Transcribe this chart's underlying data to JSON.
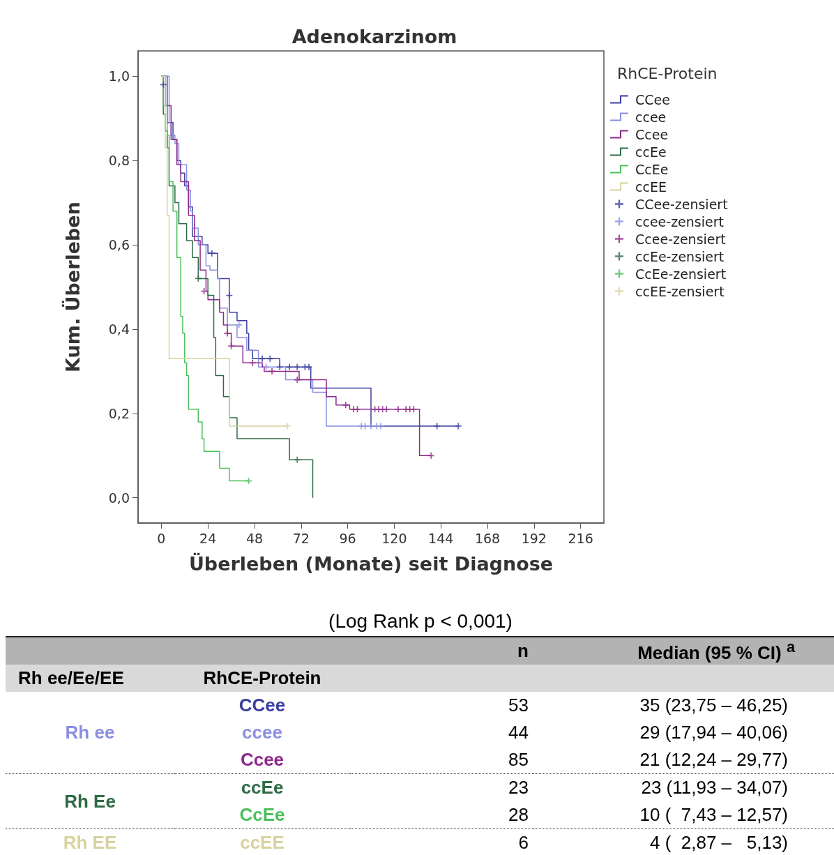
{
  "chart_data": {
    "type": "step",
    "title": "Adenokarzinom",
    "xlabel": "Überleben (Monate) seit Diagnose",
    "ylabel": "Kum. Überleben",
    "legend_title": "RhCE-Protein",
    "legend": "right",
    "grid": false,
    "xlim": [
      -12,
      228
    ],
    "xticks": [
      0,
      24,
      48,
      72,
      96,
      120,
      144,
      168,
      192,
      216
    ],
    "ylim": [
      -0.06,
      1.06
    ],
    "yticks": [
      {
        "value": 0,
        "label": "0,0"
      },
      {
        "value": 0.2,
        "label": "0,2"
      },
      {
        "value": 0.4,
        "label": "0,4"
      },
      {
        "value": 0.6,
        "label": "0,6"
      },
      {
        "value": 0.8,
        "label": "0,8"
      },
      {
        "value": 1,
        "label": "1,0"
      }
    ],
    "series": [
      {
        "name": "CCee",
        "marker": "none",
        "color": "#3b3f9e",
        "x": [
          0,
          3,
          6,
          8,
          10,
          12,
          14,
          16,
          21,
          24,
          29,
          35,
          39,
          44,
          45,
          47,
          61,
          77,
          108,
          153
        ],
        "values": [
          1,
          0.89,
          0.85,
          0.8,
          0.77,
          0.74,
          0.69,
          0.62,
          0.6,
          0.58,
          0.52,
          0.44,
          0.42,
          0.39,
          0.35,
          0.33,
          0.31,
          0.26,
          0.17,
          0.17
        ]
      },
      {
        "name": "ccee",
        "marker": "none",
        "color": "#8a8fe0",
        "x": [
          0,
          4,
          5,
          7,
          9,
          13,
          15,
          16,
          19,
          23,
          25,
          29,
          30,
          34,
          39,
          44,
          50,
          64,
          78,
          85,
          113
        ],
        "values": [
          1,
          0.89,
          0.86,
          0.84,
          0.79,
          0.73,
          0.68,
          0.64,
          0.6,
          0.55,
          0.54,
          0.52,
          0.45,
          0.41,
          0.38,
          0.35,
          0.31,
          0.28,
          0.25,
          0.17,
          0.17
        ]
      },
      {
        "name": "Ccee",
        "marker": "none",
        "color": "#8e2a8a",
        "x": [
          0,
          2,
          5,
          8,
          10,
          14,
          17,
          20,
          23,
          24,
          30,
          32,
          34,
          36,
          42,
          52,
          53,
          71,
          85,
          90,
          97,
          133,
          139
        ],
        "values": [
          1,
          0.93,
          0.85,
          0.79,
          0.75,
          0.67,
          0.61,
          0.54,
          0.49,
          0.47,
          0.44,
          0.41,
          0.39,
          0.36,
          0.32,
          0.31,
          0.3,
          0.28,
          0.24,
          0.22,
          0.21,
          0.1,
          0.1
        ]
      },
      {
        "name": "ccEe",
        "marker": "none",
        "color": "#2e6b46",
        "x": [
          0,
          1,
          2,
          3,
          4,
          7,
          9,
          13,
          16,
          19,
          24,
          27,
          28,
          32,
          35,
          39,
          66,
          78
        ],
        "values": [
          1,
          0.91,
          0.87,
          0.83,
          0.74,
          0.7,
          0.65,
          0.61,
          0.57,
          0.52,
          0.48,
          0.38,
          0.29,
          0.24,
          0.19,
          0.14,
          0.09,
          0
        ]
      },
      {
        "name": "CcEe",
        "marker": "none",
        "color": "#4cbf5a",
        "x": [
          0,
          1,
          3,
          4,
          6,
          8,
          10,
          11,
          12,
          13,
          14,
          19,
          21,
          22,
          30,
          35,
          45
        ],
        "values": [
          1,
          0.93,
          0.86,
          0.75,
          0.68,
          0.57,
          0.43,
          0.39,
          0.32,
          0.29,
          0.21,
          0.18,
          0.14,
          0.11,
          0.07,
          0.04,
          0.04
        ]
      },
      {
        "name": "ccEE",
        "marker": "none",
        "color": "#d8d2a0",
        "x": [
          0,
          2,
          3,
          4,
          35,
          65
        ],
        "values": [
          1,
          0.83,
          0.67,
          0.33,
          0.17,
          0.17
        ]
      },
      {
        "name": "CCee-zensiert",
        "type": "scatter",
        "marker": "cross",
        "color": "#3b3f9e",
        "x": [
          1,
          26,
          35,
          52,
          56,
          61,
          66,
          70,
          74,
          76,
          142,
          153
        ],
        "values": [
          0.98,
          0.58,
          0.48,
          0.33,
          0.33,
          0.31,
          0.31,
          0.31,
          0.31,
          0.31,
          0.17,
          0.17
        ]
      },
      {
        "name": "ccee-zensiert",
        "type": "scatter",
        "marker": "cross",
        "color": "#8a8fe0",
        "x": [
          40,
          54,
          103,
          105,
          108,
          111,
          113
        ],
        "values": [
          0.41,
          0.31,
          0.17,
          0.17,
          0.17,
          0.17,
          0.17
        ]
      },
      {
        "name": "Ccee-zensiert",
        "type": "scatter",
        "marker": "cross",
        "color": "#8e2a8a",
        "x": [
          22,
          34,
          36,
          47,
          57,
          70,
          95,
          99,
          101,
          110,
          112,
          114,
          116,
          122,
          126,
          128,
          130,
          139
        ],
        "values": [
          0.49,
          0.39,
          0.36,
          0.32,
          0.3,
          0.28,
          0.22,
          0.21,
          0.21,
          0.21,
          0.21,
          0.21,
          0.21,
          0.21,
          0.21,
          0.21,
          0.21,
          0.1
        ]
      },
      {
        "name": "ccEe-zensiert",
        "type": "scatter",
        "marker": "cross",
        "color": "#2e6b46",
        "x": [
          19,
          70
        ],
        "values": [
          0.52,
          0.09
        ]
      },
      {
        "name": "CcEe-zensiert",
        "type": "scatter",
        "marker": "cross",
        "color": "#4cbf5a",
        "x": [
          45
        ],
        "values": [
          0.04
        ]
      },
      {
        "name": "ccEE-zensiert",
        "type": "scatter",
        "marker": "cross",
        "color": "#d8d2a0",
        "x": [
          65
        ],
        "values": [
          0.17
        ]
      }
    ],
    "annotations": [
      "(Log Rank p < 0,001)",
      "n",
      "Median (95 % CI) $^{a}$",
      "Rh ee/Ee/EE",
      "RhCE-Protein",
      "Rh ee",
      "Rh Ee",
      "Rh EE",
      "CCee",
      "53",
      "35 (23,75 – 46,25)",
      "ccee",
      "44",
      "29 (17,94 – 40,06)",
      "Ccee",
      "85",
      "21 (12,24 – 29,77)",
      "ccEe",
      "23",
      "23 (11,93 – 34,07)",
      "CcEe",
      "28",
      "10 (  7,43 – 12,57)",
      "ccEE",
      "6",
      "4 (  2,87 –   5,13)"
    ]
  }
}
